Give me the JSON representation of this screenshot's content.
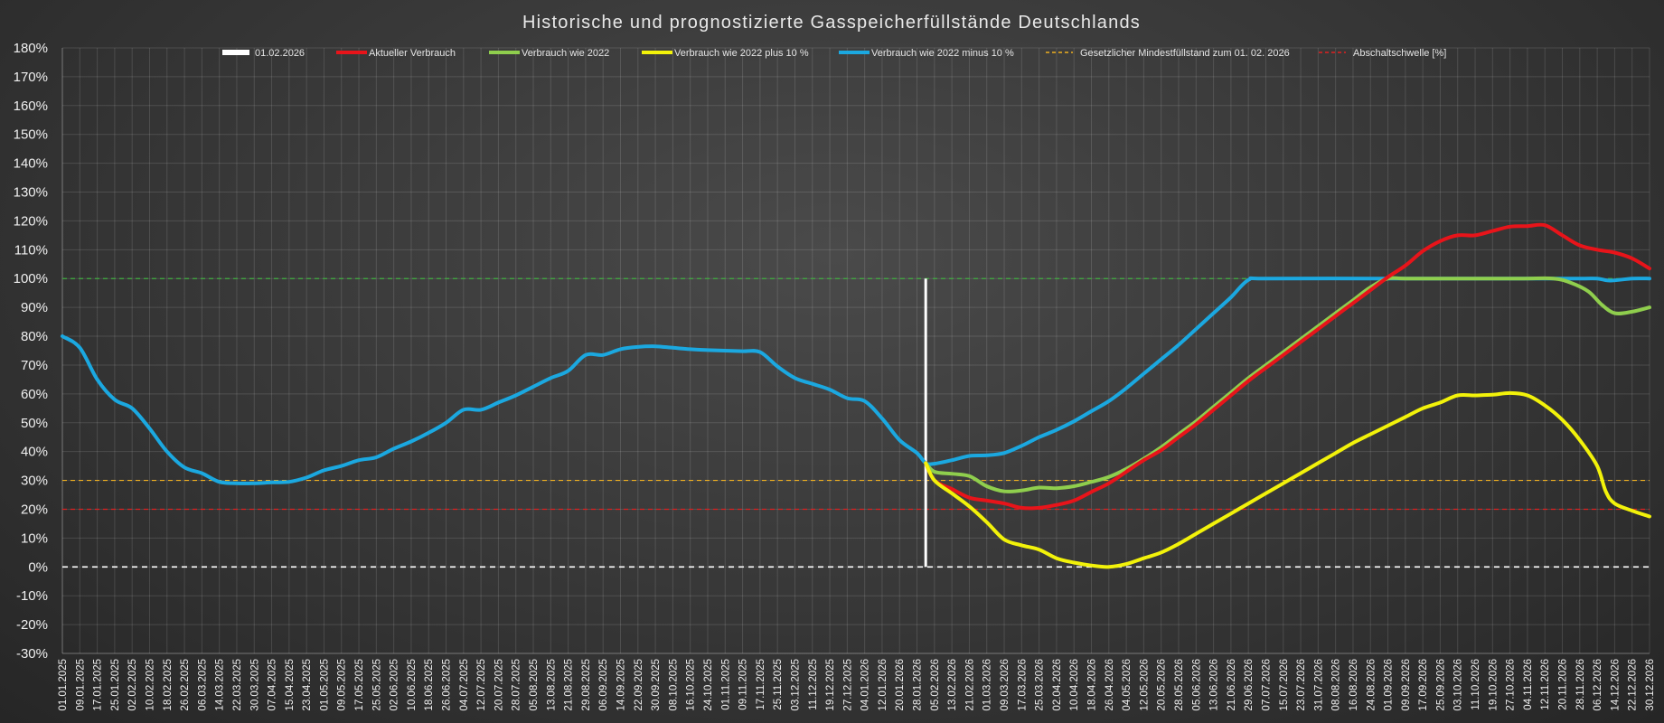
{
  "chart_data": {
    "type": "line",
    "title": "Historische und prognostizierte Gasspeicherfüllstände Deutschlands",
    "xlabel": "",
    "ylabel": "",
    "ylim": [
      -30,
      180
    ],
    "y_ticks": [
      180,
      170,
      160,
      150,
      140,
      130,
      120,
      110,
      100,
      90,
      80,
      70,
      60,
      50,
      40,
      30,
      20,
      10,
      0,
      -10,
      -20,
      -30
    ],
    "y_tick_labels": [
      "180%",
      "170%",
      "160%",
      "150%",
      "140%",
      "130%",
      "120%",
      "110%",
      "100%",
      "90%",
      "80%",
      "70%",
      "60%",
      "50%",
      "40%",
      "30%",
      "20%",
      "10%",
      "0%",
      "-10%",
      "-20%",
      "-30%"
    ],
    "x_start": "2025-01-01",
    "x_end": "2026-12-30",
    "x_ticks": [
      "01.01.2025",
      "09.01.2025",
      "17.01.2025",
      "25.01.2025",
      "02.02.2025",
      "10.02.2025",
      "18.02.2025",
      "26.02.2025",
      "06.03.2025",
      "14.03.2025",
      "22.03.2025",
      "30.03.2025",
      "07.04.2025",
      "15.04.2025",
      "23.04.2025",
      "01.05.2025",
      "09.05.2025",
      "17.05.2025",
      "25.05.2025",
      "02.06.2025",
      "10.06.2025",
      "18.06.2025",
      "26.06.2025",
      "04.07.2025",
      "12.07.2025",
      "20.07.2025",
      "28.07.2025",
      "05.08.2025",
      "13.08.2025",
      "21.08.2025",
      "29.08.2025",
      "06.09.2025",
      "14.09.2025",
      "22.09.2025",
      "30.09.2025",
      "08.10.2025",
      "16.10.2025",
      "24.10.2025",
      "01.11.2025",
      "09.11.2025",
      "17.11.2025",
      "25.11.2025",
      "03.12.2025",
      "11.12.2025",
      "19.12.2025",
      "27.12.2025",
      "04.01.2026",
      "12.01.2026",
      "20.01.2026",
      "28.01.2026",
      "05.02.2026",
      "13.02.2026",
      "21.02.2026",
      "01.03.2026",
      "09.03.2026",
      "17.03.2026",
      "25.03.2026",
      "02.04.2026",
      "10.04.2026",
      "18.04.2026",
      "26.04.2026",
      "04.05.2026",
      "12.05.2026",
      "20.05.2026",
      "28.05.2026",
      "05.06.2026",
      "13.06.2026",
      "21.06.2026",
      "29.06.2026",
      "07.07.2026",
      "15.07.2026",
      "23.07.2026",
      "31.07.2026",
      "08.08.2026",
      "16.08.2026",
      "24.08.2026",
      "01.09.2026",
      "09.09.2026",
      "17.09.2026",
      "25.09.2026",
      "03.10.2026",
      "11.10.2026",
      "19.10.2026",
      "27.10.2026",
      "04.11.2026",
      "12.11.2026",
      "20.11.2026",
      "28.11.2026",
      "06.12.2026",
      "14.12.2026",
      "22.12.2026",
      "30.12.2026"
    ],
    "grid": true,
    "legend_position": "top",
    "legend": [
      {
        "label": "01.02.2026",
        "color": "#ffffff",
        "style": "solid-wide"
      },
      {
        "label": "Aktueller Verbrauch",
        "color": "#e8141a",
        "style": "solid"
      },
      {
        "label": "Verbrauch wie 2022",
        "color": "#8fce4d",
        "style": "solid"
      },
      {
        "label": "Verbrauch wie 2022 plus 10 %",
        "color": "#f2f20a",
        "style": "solid"
      },
      {
        "label": "Verbrauch wie 2022 minus 10 %",
        "color": "#1ba8e0",
        "style": "solid"
      },
      {
        "label": "Gesetzlicher Mindestfüllstand zum 01. 02. 2026",
        "color": "#f0b020",
        "style": "dashed"
      },
      {
        "label": "Abschaltschwelle [%]",
        "color": "#e02020",
        "style": "dashed"
      }
    ],
    "reference_lines": [
      {
        "y": 100,
        "color": "#3fae3f",
        "style": "dashed"
      },
      {
        "y": 30,
        "color": "#f0b020",
        "style": "dashed"
      },
      {
        "y": 20,
        "color": "#e02020",
        "style": "dashed"
      },
      {
        "y": 0,
        "color": "#ffffff",
        "style": "dashed"
      }
    ],
    "marker_line": {
      "x": "2026-02-01",
      "from": 0,
      "to": 100,
      "color": "#ffffff"
    },
    "series": [
      {
        "name": "Verbrauch wie 2022 minus 10 %",
        "color": "#1ba8e0",
        "points": [
          [
            "2025-01-01",
            80
          ],
          [
            "2025-01-09",
            76
          ],
          [
            "2025-01-17",
            65
          ],
          [
            "2025-01-25",
            58
          ],
          [
            "2025-02-02",
            55
          ],
          [
            "2025-02-10",
            48
          ],
          [
            "2025-02-18",
            40
          ],
          [
            "2025-02-26",
            34.5
          ],
          [
            "2025-03-06",
            32.5
          ],
          [
            "2025-03-14",
            29.5
          ],
          [
            "2025-03-22",
            29
          ],
          [
            "2025-03-30",
            29
          ],
          [
            "2025-04-07",
            29.3
          ],
          [
            "2025-04-15",
            29.5
          ],
          [
            "2025-04-23",
            31
          ],
          [
            "2025-05-01",
            33.5
          ],
          [
            "2025-05-09",
            35
          ],
          [
            "2025-05-17",
            37
          ],
          [
            "2025-05-25",
            38
          ],
          [
            "2025-06-02",
            41
          ],
          [
            "2025-06-10",
            43.5
          ],
          [
            "2025-06-18",
            46.5
          ],
          [
            "2025-06-26",
            50
          ],
          [
            "2025-07-04",
            54.5
          ],
          [
            "2025-07-12",
            54.5
          ],
          [
            "2025-07-20",
            57
          ],
          [
            "2025-07-28",
            59.5
          ],
          [
            "2025-08-05",
            62.5
          ],
          [
            "2025-08-13",
            65.5
          ],
          [
            "2025-08-21",
            68
          ],
          [
            "2025-08-29",
            73.5
          ],
          [
            "2025-09-06",
            73.5
          ],
          [
            "2025-09-14",
            75.5
          ],
          [
            "2025-09-22",
            76.3
          ],
          [
            "2025-09-30",
            76.5
          ],
          [
            "2025-10-08",
            76
          ],
          [
            "2025-10-16",
            75.5
          ],
          [
            "2025-10-24",
            75.2
          ],
          [
            "2025-11-01",
            75
          ],
          [
            "2025-11-09",
            74.8
          ],
          [
            "2025-11-17",
            74.5
          ],
          [
            "2025-11-25",
            69.5
          ],
          [
            "2025-12-03",
            65.5
          ],
          [
            "2025-12-11",
            63.5
          ],
          [
            "2025-12-19",
            61.5
          ],
          [
            "2025-12-27",
            58.5
          ],
          [
            "2026-01-04",
            57.5
          ],
          [
            "2026-01-12",
            51.5
          ],
          [
            "2026-01-20",
            44
          ],
          [
            "2026-01-28",
            39.5
          ],
          [
            "2026-02-01",
            36
          ],
          [
            "2026-02-05",
            35.8
          ],
          [
            "2026-02-13",
            37
          ],
          [
            "2026-02-21",
            38.5
          ],
          [
            "2026-03-01",
            38.7
          ],
          [
            "2026-03-09",
            39.5
          ],
          [
            "2026-03-17",
            42
          ],
          [
            "2026-03-25",
            45
          ],
          [
            "2026-04-02",
            47.5
          ],
          [
            "2026-04-10",
            50.5
          ],
          [
            "2026-04-18",
            54
          ],
          [
            "2026-04-26",
            57.5
          ],
          [
            "2026-05-04",
            62
          ],
          [
            "2026-05-12",
            67
          ],
          [
            "2026-05-20",
            72
          ],
          [
            "2026-05-28",
            77
          ],
          [
            "2026-06-05",
            82.5
          ],
          [
            "2026-06-13",
            88
          ],
          [
            "2026-06-21",
            93.5
          ],
          [
            "2026-06-29",
            99.5
          ],
          [
            "2026-07-07",
            100
          ],
          [
            "2026-09-01",
            100
          ],
          [
            "2026-10-01",
            100
          ],
          [
            "2026-11-01",
            100
          ],
          [
            "2026-11-28",
            100
          ],
          [
            "2026-12-06",
            100
          ],
          [
            "2026-12-12",
            99.3
          ],
          [
            "2026-12-22",
            100
          ],
          [
            "2026-12-30",
            100
          ]
        ]
      },
      {
        "name": "Verbrauch wie 2022",
        "color": "#8fce4d",
        "points": [
          [
            "2026-02-01",
            36
          ],
          [
            "2026-02-05",
            33
          ],
          [
            "2026-02-13",
            32.3
          ],
          [
            "2026-02-21",
            31.5
          ],
          [
            "2026-03-01",
            28
          ],
          [
            "2026-03-09",
            26.2
          ],
          [
            "2026-03-17",
            26.5
          ],
          [
            "2026-03-25",
            27.5
          ],
          [
            "2026-04-02",
            27.3
          ],
          [
            "2026-04-10",
            28
          ],
          [
            "2026-04-18",
            29.5
          ],
          [
            "2026-04-26",
            31.2
          ],
          [
            "2026-05-04",
            34
          ],
          [
            "2026-05-12",
            37.5
          ],
          [
            "2026-05-20",
            41.5
          ],
          [
            "2026-05-28",
            46
          ],
          [
            "2026-06-05",
            50.5
          ],
          [
            "2026-06-13",
            55.5
          ],
          [
            "2026-06-21",
            60.5
          ],
          [
            "2026-06-29",
            65.5
          ],
          [
            "2026-07-07",
            70
          ],
          [
            "2026-07-15",
            74.5
          ],
          [
            "2026-07-23",
            79
          ],
          [
            "2026-07-31",
            83.5
          ],
          [
            "2026-08-08",
            88
          ],
          [
            "2026-08-16",
            92.5
          ],
          [
            "2026-08-24",
            97
          ],
          [
            "2026-09-01",
            100
          ],
          [
            "2026-09-09",
            100
          ],
          [
            "2026-10-01",
            100
          ],
          [
            "2026-11-01",
            100
          ],
          [
            "2026-11-16",
            100
          ],
          [
            "2026-11-24",
            98.5
          ],
          [
            "2026-12-02",
            95.5
          ],
          [
            "2026-12-08",
            91
          ],
          [
            "2026-12-14",
            88
          ],
          [
            "2026-12-22",
            88.5
          ],
          [
            "2026-12-30",
            90
          ]
        ]
      },
      {
        "name": "Aktueller Verbrauch",
        "color": "#e8141a",
        "points": [
          [
            "2026-02-01",
            36
          ],
          [
            "2026-02-05",
            30
          ],
          [
            "2026-02-13",
            27
          ],
          [
            "2026-02-21",
            24
          ],
          [
            "2026-03-01",
            23
          ],
          [
            "2026-03-09",
            22
          ],
          [
            "2026-03-17",
            20.5
          ],
          [
            "2026-03-25",
            20.5
          ],
          [
            "2026-04-02",
            21.5
          ],
          [
            "2026-04-10",
            23
          ],
          [
            "2026-04-18",
            26
          ],
          [
            "2026-04-26",
            29
          ],
          [
            "2026-05-04",
            33
          ],
          [
            "2026-05-12",
            37
          ],
          [
            "2026-05-20",
            40.5
          ],
          [
            "2026-05-28",
            45
          ],
          [
            "2026-06-05",
            49.5
          ],
          [
            "2026-06-13",
            54.5
          ],
          [
            "2026-06-21",
            59.5
          ],
          [
            "2026-06-29",
            64.5
          ],
          [
            "2026-07-07",
            69
          ],
          [
            "2026-07-15",
            73.5
          ],
          [
            "2026-07-23",
            78
          ],
          [
            "2026-07-31",
            82.5
          ],
          [
            "2026-08-08",
            87
          ],
          [
            "2026-08-16",
            91.5
          ],
          [
            "2026-08-24",
            96
          ],
          [
            "2026-09-01",
            100.5
          ],
          [
            "2026-09-09",
            104.5
          ],
          [
            "2026-09-17",
            109.5
          ],
          [
            "2026-09-25",
            113
          ],
          [
            "2026-10-03",
            115
          ],
          [
            "2026-10-11",
            115
          ],
          [
            "2026-10-19",
            116.5
          ],
          [
            "2026-10-27",
            118
          ],
          [
            "2026-11-04",
            118.2
          ],
          [
            "2026-11-12",
            118.5
          ],
          [
            "2026-11-20",
            115
          ],
          [
            "2026-11-28",
            111.5
          ],
          [
            "2026-12-06",
            110
          ],
          [
            "2026-12-14",
            109
          ],
          [
            "2026-12-22",
            107
          ],
          [
            "2026-12-30",
            103.5
          ]
        ]
      },
      {
        "name": "Verbrauch wie 2022 plus 10 %",
        "color": "#f2f20a",
        "points": [
          [
            "2026-02-01",
            36
          ],
          [
            "2026-02-05",
            30
          ],
          [
            "2026-02-13",
            25.5
          ],
          [
            "2026-02-21",
            21
          ],
          [
            "2026-03-01",
            15.5
          ],
          [
            "2026-03-09",
            9.5
          ],
          [
            "2026-03-17",
            7.5
          ],
          [
            "2026-03-25",
            6
          ],
          [
            "2026-04-02",
            3
          ],
          [
            "2026-04-10",
            1.5
          ],
          [
            "2026-04-18",
            0.5
          ],
          [
            "2026-04-26",
            0
          ],
          [
            "2026-05-04",
            1
          ],
          [
            "2026-05-12",
            3
          ],
          [
            "2026-05-20",
            5
          ],
          [
            "2026-05-28",
            8
          ],
          [
            "2026-06-05",
            11.5
          ],
          [
            "2026-06-13",
            15
          ],
          [
            "2026-06-21",
            18.5
          ],
          [
            "2026-06-29",
            22
          ],
          [
            "2026-07-07",
            25.5
          ],
          [
            "2026-07-15",
            29
          ],
          [
            "2026-07-23",
            32.5
          ],
          [
            "2026-07-31",
            36
          ],
          [
            "2026-08-08",
            39.5
          ],
          [
            "2026-08-16",
            43
          ],
          [
            "2026-08-24",
            46
          ],
          [
            "2026-09-01",
            49
          ],
          [
            "2026-09-09",
            52
          ],
          [
            "2026-09-17",
            55
          ],
          [
            "2026-09-25",
            57
          ],
          [
            "2026-10-03",
            59.5
          ],
          [
            "2026-10-11",
            59.5
          ],
          [
            "2026-10-19",
            59.7
          ],
          [
            "2026-10-27",
            60.3
          ],
          [
            "2026-11-04",
            59.5
          ],
          [
            "2026-11-12",
            56
          ],
          [
            "2026-11-20",
            51
          ],
          [
            "2026-11-28",
            44
          ],
          [
            "2026-12-06",
            35
          ],
          [
            "2026-12-10",
            26
          ],
          [
            "2026-12-14",
            22
          ],
          [
            "2026-12-22",
            19.5
          ],
          [
            "2026-12-30",
            17.5
          ]
        ]
      }
    ]
  }
}
